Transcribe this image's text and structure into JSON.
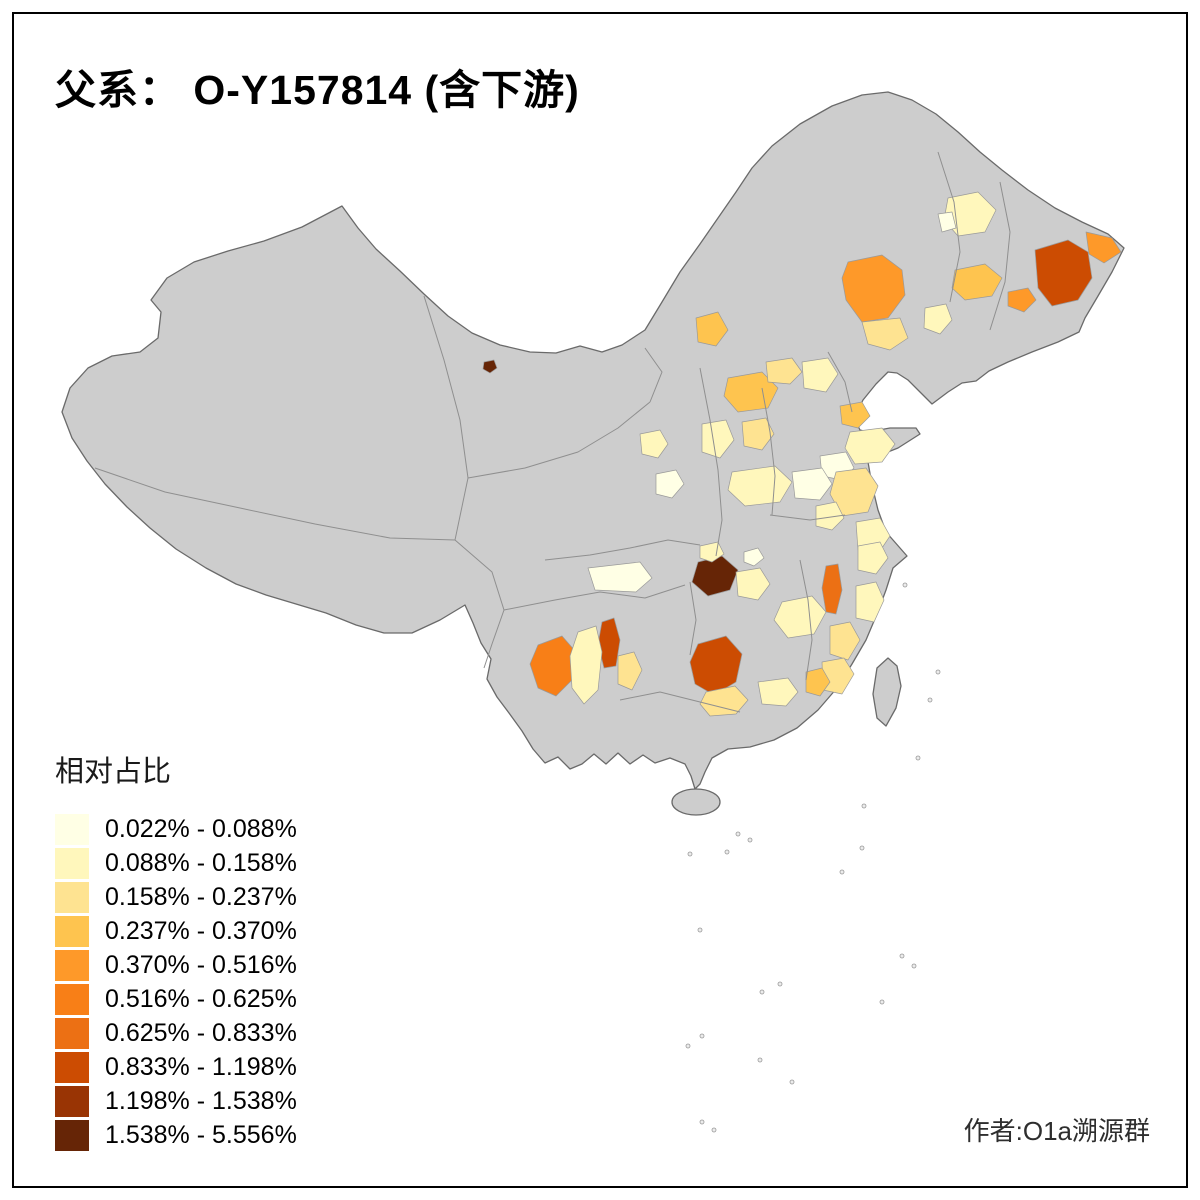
{
  "title": "父系： O-Y157814 (含下游)",
  "legend": {
    "title": "相对占比",
    "classes": [
      {
        "label": "0.022% - 0.088%",
        "color": "#FFFFE5"
      },
      {
        "label": "0.088% - 0.158%",
        "color": "#FFF7BC"
      },
      {
        "label": "0.158% - 0.237%",
        "color": "#FEE391"
      },
      {
        "label": "0.237% - 0.370%",
        "color": "#FEC44F"
      },
      {
        "label": "0.370% - 0.516%",
        "color": "#FE9929"
      },
      {
        "label": "0.516% - 0.625%",
        "color": "#F87F17"
      },
      {
        "label": "0.625% - 0.833%",
        "color": "#EC7014"
      },
      {
        "label": "0.833% - 1.198%",
        "color": "#CC4C02"
      },
      {
        "label": "1.198% - 1.538%",
        "color": "#993404"
      },
      {
        "label": "1.538% - 5.556%",
        "color": "#662506"
      }
    ]
  },
  "credit": "作者:O1a溯源群",
  "map": {
    "no_data_fill": "#CDCDCD",
    "outline_color": "#6A6A6A",
    "inner_border_color": "#8F8F8F",
    "background": "#FFFFFF"
  }
}
